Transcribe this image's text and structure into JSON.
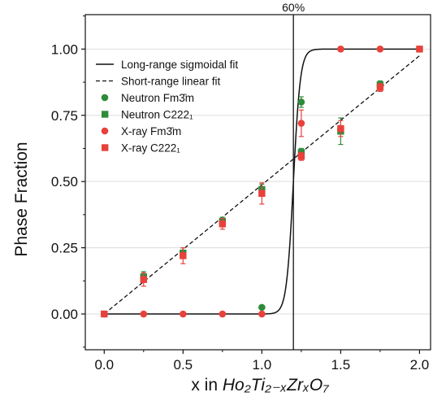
{
  "chart_data": {
    "type": "scatter",
    "xlabel_prefix": "x in ",
    "xlabel_formula": "Ho₂Ti₂₋ₓZrₓO₇",
    "ylabel": "Phase Fraction",
    "xlim": [
      -0.12,
      2.07
    ],
    "ylim": [
      -0.135,
      1.13
    ],
    "xticks": [
      "0.0",
      "0.5",
      "1.0",
      "1.5",
      "2.0"
    ],
    "yticks": [
      "0.00",
      "0.25",
      "0.50",
      "0.75",
      "1.00"
    ],
    "grid": "horizontal",
    "legend_position": "top-left",
    "annotation": {
      "label": "60%",
      "x": 1.2
    },
    "legend": [
      {
        "label": "Long-range sigmoidal fit",
        "style": "solid-line"
      },
      {
        "label": "Short-range linear fit",
        "style": "dashed-line"
      },
      {
        "label": "Neutron Fm3̄m",
        "style": "circle",
        "color": "#2e8b3a"
      },
      {
        "label": "Neutron C222₁",
        "style": "square",
        "color": "#2e8b3a"
      },
      {
        "label": "X-ray Fm3̄m",
        "style": "circle",
        "color": "#e8413b"
      },
      {
        "label": "X-ray C222₁",
        "style": "square",
        "color": "#e8413b"
      }
    ],
    "fits": {
      "sigmoid": {
        "low": 0.0,
        "high": 1.0,
        "center": 1.2,
        "width": 0.022
      },
      "linear": {
        "x0": 0.0,
        "y0": 0.0,
        "x1": 2.0,
        "y1": 0.975
      }
    },
    "series": [
      {
        "name": "Neutron Fm3̄m",
        "marker": "circle",
        "color": "#2e8b3a",
        "points": [
          {
            "x": 1.0,
            "y": 0.025,
            "err": 0.0
          },
          {
            "x": 1.25,
            "y": 0.8,
            "err": 0.02
          }
        ]
      },
      {
        "name": "Neutron C222₁",
        "marker": "square",
        "color": "#2e8b3a",
        "points": [
          {
            "x": 0.25,
            "y": 0.14,
            "err": 0.02
          },
          {
            "x": 0.5,
            "y": 0.23,
            "err": 0.02
          },
          {
            "x": 0.75,
            "y": 0.35,
            "err": 0.015
          },
          {
            "x": 1.0,
            "y": 0.47,
            "err": 0.02
          },
          {
            "x": 1.25,
            "y": 0.61,
            "err": 0.015
          },
          {
            "x": 1.5,
            "y": 0.69,
            "err": 0.05
          },
          {
            "x": 1.75,
            "y": 0.865,
            "err": 0.015
          }
        ]
      },
      {
        "name": "X-ray Fm3̄m",
        "marker": "circle",
        "color": "#e8413b",
        "points": [
          {
            "x": 0.0,
            "y": 0.0,
            "err": 0.0
          },
          {
            "x": 0.25,
            "y": 0.0,
            "err": 0.0
          },
          {
            "x": 0.5,
            "y": 0.0,
            "err": 0.0
          },
          {
            "x": 0.75,
            "y": 0.0,
            "err": 0.0
          },
          {
            "x": 1.0,
            "y": 0.0,
            "err": 0.0
          },
          {
            "x": 1.25,
            "y": 0.72,
            "err": 0.05
          },
          {
            "x": 1.5,
            "y": 1.0,
            "err": 0.0
          },
          {
            "x": 1.75,
            "y": 1.0,
            "err": 0.0
          },
          {
            "x": 2.0,
            "y": 1.0,
            "err": 0.0
          }
        ]
      },
      {
        "name": "X-ray C222₁",
        "marker": "square",
        "color": "#e8413b",
        "points": [
          {
            "x": 0.0,
            "y": 0.0,
            "err": 0.0
          },
          {
            "x": 0.25,
            "y": 0.13,
            "err": 0.025
          },
          {
            "x": 0.5,
            "y": 0.22,
            "err": 0.03
          },
          {
            "x": 0.75,
            "y": 0.34,
            "err": 0.02
          },
          {
            "x": 1.0,
            "y": 0.455,
            "err": 0.04
          },
          {
            "x": 1.25,
            "y": 0.595,
            "err": 0.015
          },
          {
            "x": 1.5,
            "y": 0.7,
            "err": 0.03
          },
          {
            "x": 1.75,
            "y": 0.855,
            "err": 0.015
          },
          {
            "x": 2.0,
            "y": 1.0,
            "err": 0.0
          }
        ]
      }
    ]
  }
}
